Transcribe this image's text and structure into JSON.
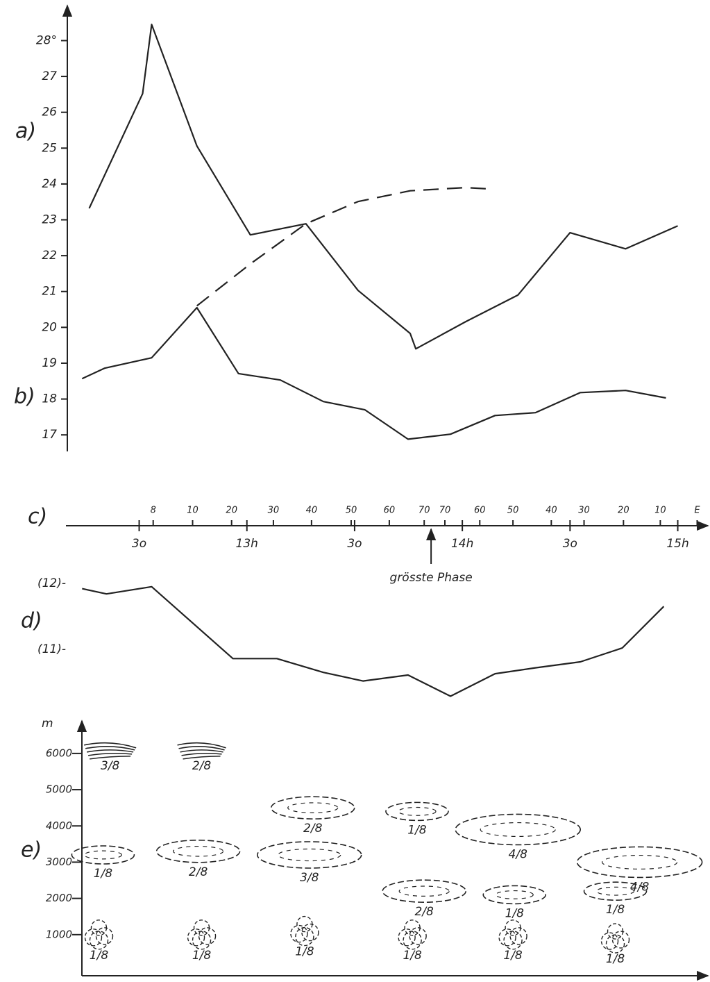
{
  "chart_data": [
    {
      "type": "line",
      "xlim": [
        12.16,
        15.14
      ],
      "ylim": [
        16.5,
        28.9
      ],
      "yticks": [
        17,
        18,
        19,
        20,
        21,
        22,
        23,
        24,
        25,
        26,
        27,
        {
          "value": 28,
          "label": "28°"
        }
      ],
      "series": [
        {
          "name": "a)",
          "color": "#222",
          "style": "solid",
          "x": [
            12.268,
            12.516,
            12.558,
            12.768,
            13.016,
            13.274,
            13.516,
            13.758,
            13.784,
            14.016,
            14.258,
            14.5,
            14.758,
            15.0
          ],
          "values": [
            23.32,
            26.52,
            28.45,
            25.06,
            22.58,
            22.89,
            21.03,
            19.83,
            19.4,
            20.16,
            20.9,
            22.64,
            22.19,
            22.83
          ]
        },
        {
          "name": "b)",
          "color": "#222",
          "style": "solid",
          "x": [
            12.235,
            12.339,
            12.558,
            12.768,
            12.961,
            13.155,
            13.355,
            13.548,
            13.748,
            13.945,
            14.152,
            14.339,
            14.548,
            14.758,
            14.945
          ],
          "values": [
            18.57,
            18.86,
            19.15,
            20.55,
            18.71,
            18.53,
            17.93,
            17.7,
            16.88,
            17.02,
            17.54,
            17.62,
            18.18,
            18.24,
            18.03
          ]
        },
        {
          "color": "#222",
          "style": "dashed",
          "x": [
            12.768,
            13.016,
            13.274,
            13.516,
            13.758,
            14.016,
            14.129
          ],
          "values": [
            20.6,
            21.77,
            22.89,
            23.51,
            23.81,
            23.9,
            23.86
          ]
        }
      ]
    },
    {
      "type": "timeline",
      "label": "c)",
      "xlim": [
        12.16,
        15.14
      ],
      "xticks": [
        {
          "value": 12.5,
          "label": "3o"
        },
        {
          "value": 13,
          "label": "13h"
        },
        {
          "value": 13.5,
          "label": "3o"
        },
        {
          "value": 14,
          "label": "14h"
        },
        {
          "value": 14.5,
          "label": "3o"
        },
        {
          "value": 15,
          "label": "15h"
        }
      ],
      "phase_ticks": [
        {
          "value": 12.565,
          "label": "8"
        },
        {
          "value": 12.748,
          "label": "10"
        },
        {
          "value": 12.929,
          "label": "20"
        },
        {
          "value": 13.123,
          "label": "30"
        },
        {
          "value": 13.3,
          "label": "40"
        },
        {
          "value": 13.484,
          "label": "50"
        },
        {
          "value": 13.661,
          "label": "60"
        },
        {
          "value": 13.823,
          "label": "70"
        },
        {
          "value": 13.919,
          "label": "70"
        },
        {
          "value": 14.081,
          "label": "60"
        },
        {
          "value": 14.235,
          "label": "50"
        },
        {
          "value": 14.413,
          "label": "40"
        },
        {
          "value": 14.565,
          "label": "30"
        },
        {
          "value": 14.748,
          "label": "20"
        },
        {
          "value": 14.919,
          "label": "10"
        },
        {
          "value": 15.09,
          "label": "E"
        }
      ],
      "annotation": {
        "text": "grösste Phase",
        "x": 13.855
      }
    },
    {
      "type": "line",
      "label": "d)",
      "xlim": [
        12.16,
        15.14
      ],
      "ylim": [
        10.2,
        12.2
      ],
      "yticks": [
        {
          "value": 12,
          "label": "(12)-"
        },
        {
          "value": 11,
          "label": "(11)-"
        }
      ],
      "series": [
        {
          "color": "#222",
          "style": "solid",
          "x": [
            12.235,
            12.348,
            12.558,
            12.935,
            13.139,
            13.355,
            13.539,
            13.748,
            13.945,
            14.152,
            14.339,
            14.548,
            14.742,
            14.935
          ],
          "values": [
            11.92,
            11.84,
            11.95,
            10.86,
            10.86,
            10.65,
            10.52,
            10.61,
            10.29,
            10.63,
            10.72,
            10.81,
            11.02,
            11.65
          ]
        }
      ]
    },
    {
      "type": "cloud",
      "label": "e)",
      "y_label": "m",
      "xlim": [
        12.16,
        15.14
      ],
      "ylim": [
        0,
        6860
      ],
      "yticks": [
        1000,
        2000,
        3000,
        4000,
        5000,
        6000
      ],
      "clouds": [
        {
          "x": 12.365,
          "altitude": 6000,
          "cover": "3/8"
        },
        {
          "x": 12.79,
          "altitude": 6000,
          "cover": "2/8"
        },
        {
          "x": 13.306,
          "altitude": 4500,
          "cover": "2/8"
        },
        {
          "x": 13.79,
          "altitude": 4400,
          "cover": "1/8"
        },
        {
          "x": 14.258,
          "altitude": 3900,
          "cover": "4/8"
        },
        {
          "x": 14.823,
          "altitude": 3000,
          "cover": "4/8"
        },
        {
          "x": 12.332,
          "altitude": 3200,
          "cover": "1/8"
        },
        {
          "x": 12.774,
          "altitude": 3300,
          "cover": "2/8"
        },
        {
          "x": 13.29,
          "altitude": 3200,
          "cover": "3/8"
        },
        {
          "x": 13.823,
          "altitude": 2200,
          "cover": "2/8"
        },
        {
          "x": 14.242,
          "altitude": 2100,
          "cover": "1/8"
        },
        {
          "x": 14.71,
          "altitude": 2200,
          "cover": "1/8"
        },
        {
          "x": 12.313,
          "altitude": 1000,
          "cover": "1/8"
        },
        {
          "x": 12.79,
          "altitude": 1000,
          "cover": "1/8"
        },
        {
          "x": 13.268,
          "altitude": 1100,
          "cover": "1/8"
        },
        {
          "x": 13.768,
          "altitude": 1000,
          "cover": "1/8"
        },
        {
          "x": 14.235,
          "altitude": 1000,
          "cover": "1/8"
        },
        {
          "x": 14.71,
          "altitude": 900,
          "cover": "1/8"
        }
      ]
    }
  ]
}
